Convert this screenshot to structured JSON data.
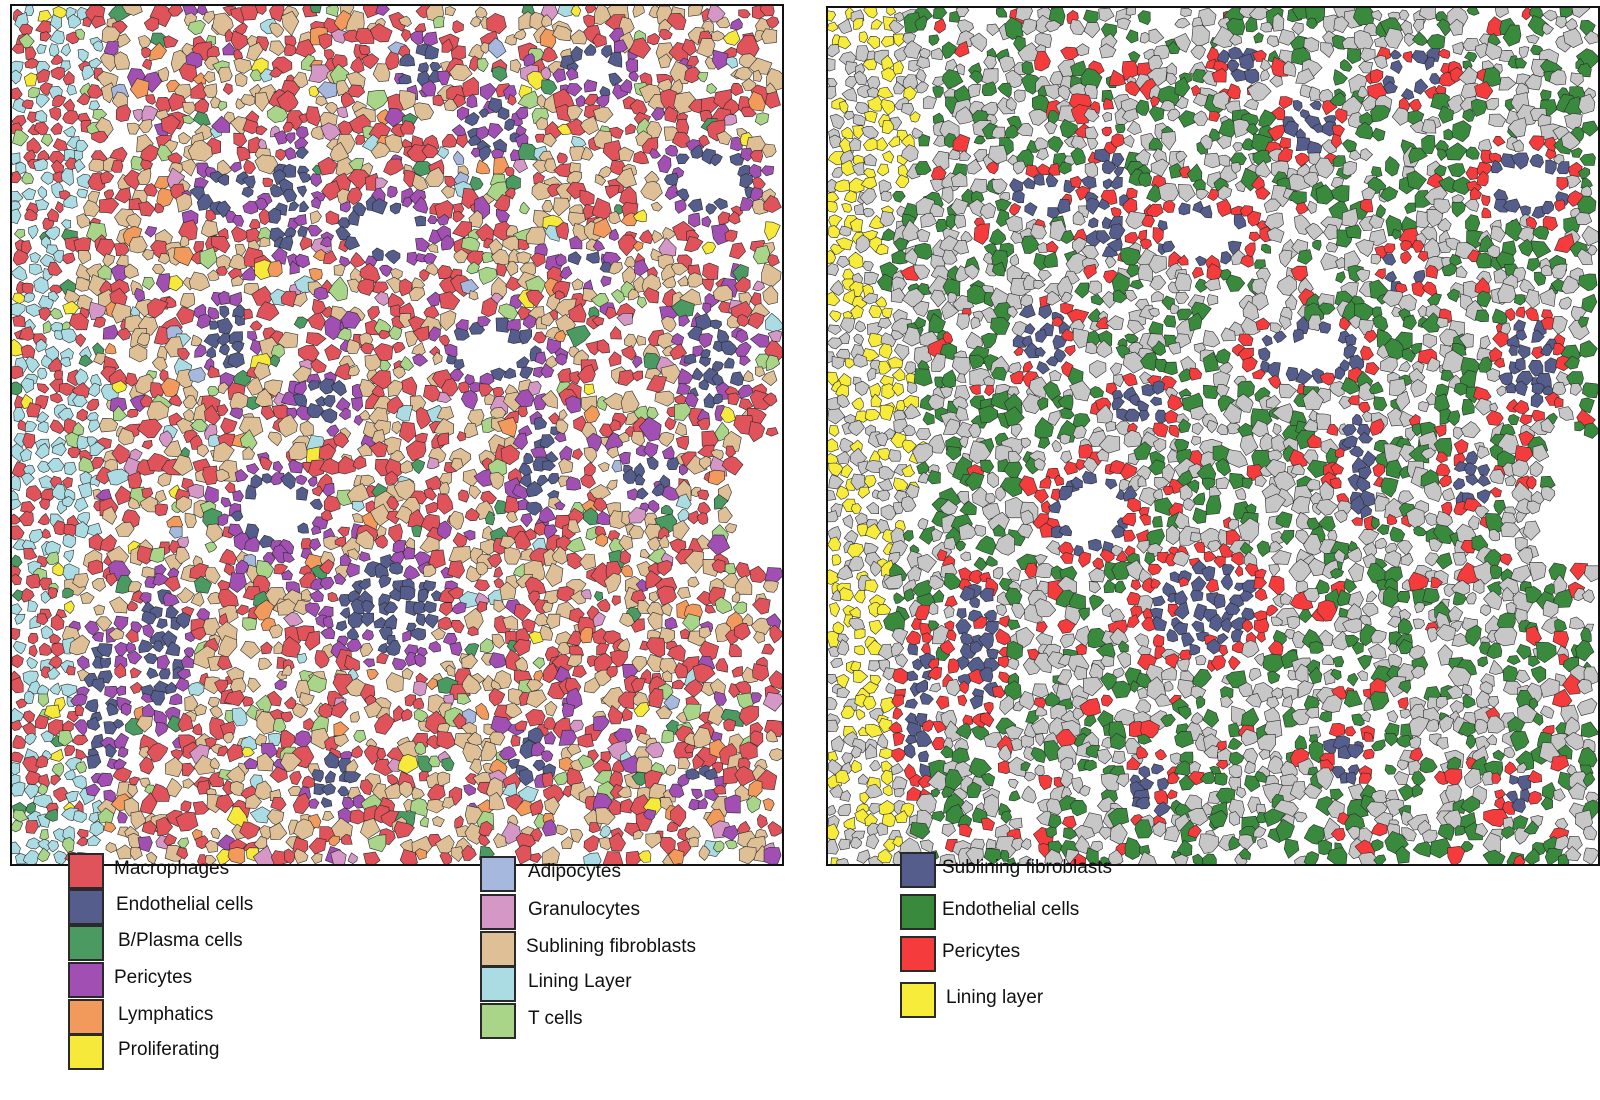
{
  "left_legend": {
    "columns": [
      [
        {
          "label": "Macrophages",
          "color": "#e0535a"
        },
        {
          "label": "Endothelial cells",
          "color": "#555d8c"
        },
        {
          "label": "B/Plasma cells",
          "color": "#4a9a62"
        },
        {
          "label": "Pericytes",
          "color": "#a24fb4"
        },
        {
          "label": "Lymphatics",
          "color": "#f29a5c"
        },
        {
          "label": "Proliferating",
          "color": "#f6e93a"
        }
      ],
      [
        {
          "label": "Adipocytes",
          "color": "#a7b8de"
        },
        {
          "label": "Granulocytes",
          "color": "#d497c6"
        },
        {
          "label": "Sublining fibroblasts",
          "color": "#dfbf96"
        },
        {
          "label": "Lining Layer",
          "color": "#abdce4"
        },
        {
          "label": "T cells",
          "color": "#a9d588"
        }
      ]
    ]
  },
  "right_legend": {
    "items": [
      {
        "label": "Sublining fibroblasts",
        "color": "#555d8c"
      },
      {
        "label": "Endothelial cells",
        "color": "#3a8a3e"
      },
      {
        "label": "Pericytes",
        "color": "#f53b3b"
      },
      {
        "label": "Lining layer",
        "color": "#f7ec3a"
      }
    ],
    "other_cells_color": "#c7c7c7"
  }
}
